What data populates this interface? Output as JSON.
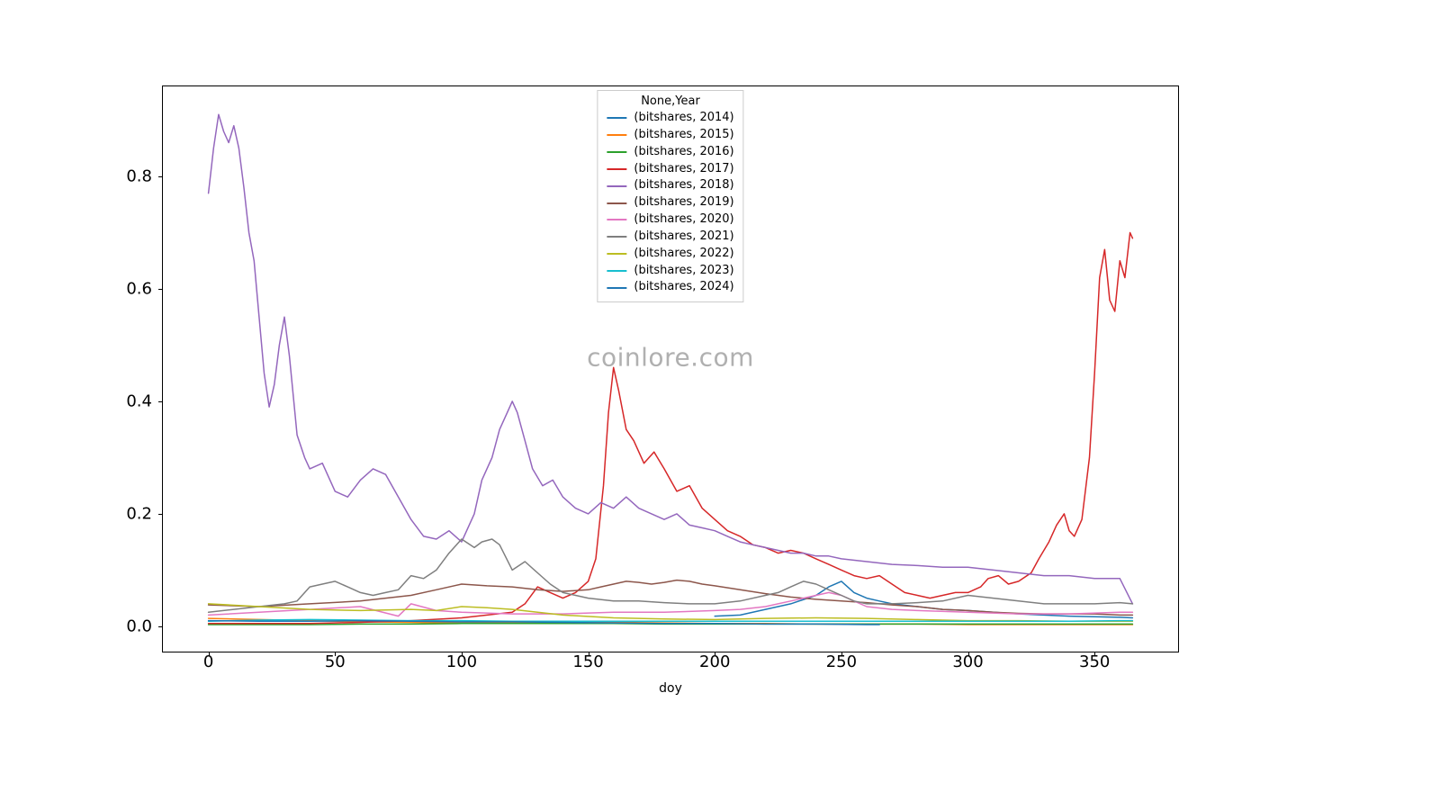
{
  "chart": {
    "type": "line",
    "background_color": "#ffffff",
    "border_color": "#000000",
    "xlabel": "doy",
    "xlabel_fontsize": 14,
    "tick_fontsize": 18,
    "xlim": [
      -18,
      383
    ],
    "ylim": [
      -0.045,
      0.96
    ],
    "xticks": [
      0,
      50,
      100,
      150,
      200,
      250,
      300,
      350
    ],
    "yticks": [
      0.0,
      0.2,
      0.4,
      0.6,
      0.8
    ],
    "ytick_labels": [
      "0.0",
      "0.2",
      "0.4",
      "0.6",
      "0.8"
    ],
    "watermark": "coinlore.com",
    "watermark_color": "#b0b0b0",
    "watermark_fontsize": 28,
    "legend": {
      "title": "None,Year",
      "position": "top-center",
      "border_color": "#cccccc",
      "fontsize": 13,
      "items": [
        {
          "label": "(bitshares, 2014)",
          "color": "#1f77b4"
        },
        {
          "label": "(bitshares, 2015)",
          "color": "#ff7f0e"
        },
        {
          "label": "(bitshares, 2016)",
          "color": "#2ca02c"
        },
        {
          "label": "(bitshares, 2017)",
          "color": "#d62728"
        },
        {
          "label": "(bitshares, 2018)",
          "color": "#9467bd"
        },
        {
          "label": "(bitshares, 2019)",
          "color": "#8c564b"
        },
        {
          "label": "(bitshares, 2020)",
          "color": "#e377c2"
        },
        {
          "label": "(bitshares, 2021)",
          "color": "#7f7f7f"
        },
        {
          "label": "(bitshares, 2022)",
          "color": "#bcbd22"
        },
        {
          "label": "(bitshares, 2023)",
          "color": "#17becf"
        },
        {
          "label": "(bitshares, 2024)",
          "color": "#1f77b4"
        }
      ]
    },
    "line_width": 1.5,
    "series": [
      {
        "name": "bitshares-2014",
        "color": "#1f77b4",
        "x": [
          200,
          210,
          220,
          230,
          240,
          245,
          250,
          255,
          260,
          265,
          270,
          280,
          290,
          300,
          310,
          320,
          330,
          340,
          350,
          360,
          365
        ],
        "y": [
          0.018,
          0.02,
          0.03,
          0.04,
          0.055,
          0.07,
          0.08,
          0.06,
          0.05,
          0.045,
          0.04,
          0.035,
          0.03,
          0.028,
          0.025,
          0.022,
          0.02,
          0.018,
          0.017,
          0.016,
          0.015
        ]
      },
      {
        "name": "bitshares-2015",
        "color": "#ff7f0e",
        "x": [
          0,
          20,
          40,
          60,
          80,
          100,
          120,
          140,
          160,
          180,
          200,
          220,
          240,
          260,
          280,
          300,
          320,
          340,
          360,
          365
        ],
        "y": [
          0.014,
          0.012,
          0.01,
          0.008,
          0.007,
          0.006,
          0.006,
          0.007,
          0.007,
          0.006,
          0.005,
          0.005,
          0.004,
          0.004,
          0.004,
          0.003,
          0.003,
          0.003,
          0.003,
          0.003
        ]
      },
      {
        "name": "bitshares-2016",
        "color": "#2ca02c",
        "x": [
          0,
          20,
          40,
          60,
          80,
          100,
          120,
          140,
          160,
          180,
          200,
          220,
          240,
          260,
          280,
          300,
          320,
          340,
          360,
          365
        ],
        "y": [
          0.003,
          0.003,
          0.003,
          0.004,
          0.004,
          0.005,
          0.005,
          0.005,
          0.005,
          0.004,
          0.004,
          0.004,
          0.004,
          0.004,
          0.004,
          0.004,
          0.004,
          0.004,
          0.004,
          0.004
        ]
      },
      {
        "name": "bitshares-2017",
        "color": "#d62728",
        "x": [
          0,
          20,
          40,
          60,
          80,
          100,
          110,
          120,
          125,
          130,
          135,
          140,
          145,
          150,
          153,
          156,
          158,
          160,
          162,
          165,
          168,
          172,
          176,
          180,
          185,
          190,
          195,
          200,
          205,
          210,
          215,
          220,
          225,
          230,
          235,
          240,
          245,
          250,
          255,
          260,
          265,
          270,
          275,
          280,
          285,
          290,
          295,
          300,
          305,
          308,
          312,
          316,
          320,
          325,
          328,
          332,
          335,
          338,
          340,
          342,
          345,
          348,
          350,
          352,
          354,
          356,
          358,
          360,
          362,
          364,
          365
        ],
        "y": [
          0.005,
          0.005,
          0.005,
          0.007,
          0.01,
          0.015,
          0.02,
          0.025,
          0.04,
          0.07,
          0.06,
          0.05,
          0.06,
          0.08,
          0.12,
          0.25,
          0.38,
          0.46,
          0.42,
          0.35,
          0.33,
          0.29,
          0.31,
          0.28,
          0.24,
          0.25,
          0.21,
          0.19,
          0.17,
          0.16,
          0.145,
          0.14,
          0.13,
          0.135,
          0.13,
          0.12,
          0.11,
          0.1,
          0.09,
          0.085,
          0.09,
          0.075,
          0.06,
          0.055,
          0.05,
          0.055,
          0.06,
          0.06,
          0.07,
          0.085,
          0.09,
          0.075,
          0.08,
          0.095,
          0.12,
          0.15,
          0.18,
          0.2,
          0.17,
          0.16,
          0.19,
          0.3,
          0.45,
          0.62,
          0.67,
          0.58,
          0.56,
          0.65,
          0.62,
          0.7,
          0.69
        ]
      },
      {
        "name": "bitshares-2018",
        "color": "#9467bd",
        "x": [
          0,
          2,
          4,
          6,
          8,
          10,
          12,
          14,
          16,
          18,
          20,
          22,
          24,
          26,
          28,
          30,
          32,
          35,
          38,
          40,
          45,
          50,
          55,
          60,
          65,
          70,
          75,
          80,
          85,
          90,
          95,
          100,
          105,
          108,
          112,
          115,
          118,
          120,
          122,
          125,
          128,
          132,
          136,
          140,
          145,
          150,
          155,
          160,
          165,
          170,
          175,
          180,
          185,
          190,
          195,
          200,
          205,
          210,
          215,
          220,
          225,
          230,
          235,
          240,
          245,
          250,
          260,
          270,
          280,
          290,
          300,
          310,
          320,
          330,
          340,
          350,
          360,
          365
        ],
        "y": [
          0.77,
          0.85,
          0.91,
          0.88,
          0.86,
          0.89,
          0.85,
          0.78,
          0.7,
          0.65,
          0.55,
          0.45,
          0.39,
          0.43,
          0.5,
          0.55,
          0.48,
          0.34,
          0.3,
          0.28,
          0.29,
          0.24,
          0.23,
          0.26,
          0.28,
          0.27,
          0.23,
          0.19,
          0.16,
          0.155,
          0.17,
          0.15,
          0.2,
          0.26,
          0.3,
          0.35,
          0.38,
          0.4,
          0.38,
          0.33,
          0.28,
          0.25,
          0.26,
          0.23,
          0.21,
          0.2,
          0.22,
          0.21,
          0.23,
          0.21,
          0.2,
          0.19,
          0.2,
          0.18,
          0.175,
          0.17,
          0.16,
          0.15,
          0.145,
          0.14,
          0.135,
          0.13,
          0.13,
          0.125,
          0.125,
          0.12,
          0.115,
          0.11,
          0.108,
          0.105,
          0.105,
          0.1,
          0.095,
          0.09,
          0.09,
          0.085,
          0.085,
          0.04
        ]
      },
      {
        "name": "bitshares-2019",
        "color": "#8c564b",
        "x": [
          0,
          20,
          40,
          60,
          80,
          90,
          100,
          110,
          120,
          130,
          140,
          150,
          155,
          160,
          165,
          170,
          175,
          180,
          185,
          190,
          195,
          200,
          210,
          220,
          230,
          240,
          250,
          260,
          270,
          280,
          290,
          300,
          310,
          320,
          330,
          340,
          350,
          360,
          365
        ],
        "y": [
          0.038,
          0.035,
          0.04,
          0.045,
          0.055,
          0.065,
          0.075,
          0.072,
          0.07,
          0.065,
          0.062,
          0.065,
          0.07,
          0.075,
          0.08,
          0.078,
          0.075,
          0.078,
          0.082,
          0.08,
          0.075,
          0.072,
          0.065,
          0.058,
          0.052,
          0.048,
          0.045,
          0.042,
          0.038,
          0.035,
          0.03,
          0.028,
          0.025,
          0.023,
          0.022,
          0.022,
          0.022,
          0.02,
          0.02
        ]
      },
      {
        "name": "bitshares-2020",
        "color": "#e377c2",
        "x": [
          0,
          20,
          40,
          60,
          75,
          80,
          90,
          100,
          120,
          140,
          160,
          180,
          200,
          210,
          220,
          225,
          230,
          235,
          240,
          245,
          250,
          255,
          260,
          270,
          280,
          300,
          320,
          340,
          360,
          365
        ],
        "y": [
          0.02,
          0.025,
          0.03,
          0.035,
          0.018,
          0.04,
          0.028,
          0.025,
          0.022,
          0.022,
          0.025,
          0.025,
          0.028,
          0.03,
          0.035,
          0.04,
          0.045,
          0.05,
          0.055,
          0.06,
          0.055,
          0.045,
          0.035,
          0.03,
          0.028,
          0.025,
          0.022,
          0.022,
          0.025,
          0.025
        ]
      },
      {
        "name": "bitshares-2021",
        "color": "#7f7f7f",
        "x": [
          0,
          10,
          20,
          30,
          35,
          40,
          45,
          50,
          55,
          60,
          65,
          70,
          75,
          80,
          85,
          90,
          95,
          100,
          105,
          108,
          112,
          115,
          120,
          125,
          130,
          135,
          140,
          145,
          150,
          160,
          170,
          180,
          190,
          200,
          210,
          220,
          225,
          230,
          235,
          240,
          245,
          250,
          255,
          260,
          270,
          280,
          290,
          300,
          310,
          320,
          330,
          340,
          350,
          360,
          365
        ],
        "y": [
          0.025,
          0.03,
          0.035,
          0.04,
          0.045,
          0.07,
          0.075,
          0.08,
          0.07,
          0.06,
          0.055,
          0.06,
          0.065,
          0.09,
          0.085,
          0.1,
          0.13,
          0.155,
          0.14,
          0.15,
          0.155,
          0.145,
          0.1,
          0.115,
          0.095,
          0.075,
          0.06,
          0.055,
          0.05,
          0.045,
          0.045,
          0.042,
          0.04,
          0.04,
          0.045,
          0.055,
          0.06,
          0.07,
          0.08,
          0.075,
          0.065,
          0.055,
          0.045,
          0.04,
          0.04,
          0.042,
          0.045,
          0.055,
          0.05,
          0.045,
          0.04,
          0.04,
          0.04,
          0.042,
          0.04
        ]
      },
      {
        "name": "bitshares-2022",
        "color": "#bcbd22",
        "x": [
          0,
          20,
          40,
          60,
          80,
          90,
          100,
          110,
          120,
          130,
          140,
          160,
          180,
          200,
          220,
          240,
          260,
          280,
          300,
          320,
          340,
          360,
          365
        ],
        "y": [
          0.04,
          0.035,
          0.03,
          0.028,
          0.03,
          0.028,
          0.035,
          0.033,
          0.03,
          0.025,
          0.02,
          0.015,
          0.013,
          0.012,
          0.014,
          0.015,
          0.014,
          0.012,
          0.01,
          0.01,
          0.009,
          0.009,
          0.009
        ]
      },
      {
        "name": "bitshares-2023",
        "color": "#17becf",
        "x": [
          0,
          20,
          40,
          60,
          80,
          100,
          120,
          140,
          160,
          180,
          200,
          220,
          240,
          260,
          280,
          300,
          320,
          340,
          360,
          365
        ],
        "y": [
          0.009,
          0.011,
          0.012,
          0.011,
          0.01,
          0.01,
          0.009,
          0.009,
          0.009,
          0.009,
          0.009,
          0.009,
          0.009,
          0.009,
          0.009,
          0.009,
          0.009,
          0.009,
          0.01,
          0.01
        ]
      },
      {
        "name": "bitshares-2024",
        "color": "#1f77b4",
        "x": [
          0,
          20,
          40,
          60,
          80,
          100,
          120,
          140,
          160,
          180,
          200,
          220,
          240,
          260,
          265
        ],
        "y": [
          0.01,
          0.009,
          0.009,
          0.01,
          0.009,
          0.008,
          0.008,
          0.007,
          0.006,
          0.005,
          0.005,
          0.004,
          0.004,
          0.003,
          0.003
        ]
      }
    ]
  }
}
